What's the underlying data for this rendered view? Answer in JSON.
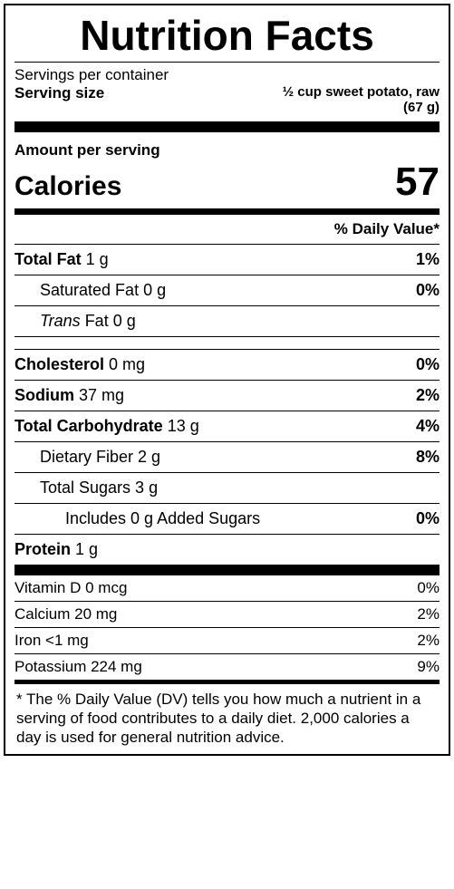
{
  "title": "Nutrition Facts",
  "servings_per_container_label": "Servings per container",
  "serving_size_label": "Serving size",
  "serving_size_value_line1": "½ cup sweet potato, raw",
  "serving_size_value_line2": "(67 g)",
  "amount_per_serving_label": "Amount per serving",
  "calories_label": "Calories",
  "calories_value": "57",
  "dv_header": "% Daily Value*",
  "nutrients_main": [
    {
      "bold": "Total Fat",
      "amount": " 1 g",
      "dv": "1%",
      "indent": 0,
      "italic": false
    },
    {
      "bold": "",
      "plain": "Saturated Fat 0 g",
      "dv": "0%",
      "indent": 1,
      "italic": false
    },
    {
      "bold": "",
      "italic_word": "Trans",
      "plain": " Fat 0 g",
      "dv": "",
      "indent": 1,
      "italic": true
    },
    {
      "spacer": true
    },
    {
      "bold": "Cholesterol",
      "amount": " 0 mg",
      "dv": "0%",
      "indent": 0
    },
    {
      "bold": "Sodium",
      "amount": " 37 mg",
      "dv": "2%",
      "indent": 0
    },
    {
      "bold": "Total Carbohydrate",
      "amount": " 13 g",
      "dv": "4%",
      "indent": 0
    },
    {
      "bold": "",
      "plain": "Dietary Fiber 2 g",
      "dv": "8%",
      "indent": 1
    },
    {
      "bold": "",
      "plain": "Total Sugars 3 g",
      "dv": "",
      "indent": 1
    },
    {
      "bold": "",
      "plain": "Includes  0 g Added Sugars",
      "dv": "0%",
      "indent": 2
    },
    {
      "bold": "Protein",
      "amount": " 1 g",
      "dv": "",
      "indent": 0,
      "thick": 12
    }
  ],
  "nutrients_vitamins": [
    {
      "plain": "Vitamin D 0 mcg",
      "dv": "0%"
    },
    {
      "plain": "Calcium 20 mg",
      "dv": "2%"
    },
    {
      "plain": "Iron <1 mg",
      "dv": "2%"
    },
    {
      "plain": "Potassium 224 mg",
      "dv": "9%",
      "thick": 5
    }
  ],
  "footnote": "* The % Daily Value (DV) tells you how much a nutrient in a serving of food contributes to a daily diet. 2,000 calories a day is used for general nutrition advice.",
  "colors": {
    "text": "#000000",
    "background": "#ffffff",
    "rule": "#000000"
  }
}
